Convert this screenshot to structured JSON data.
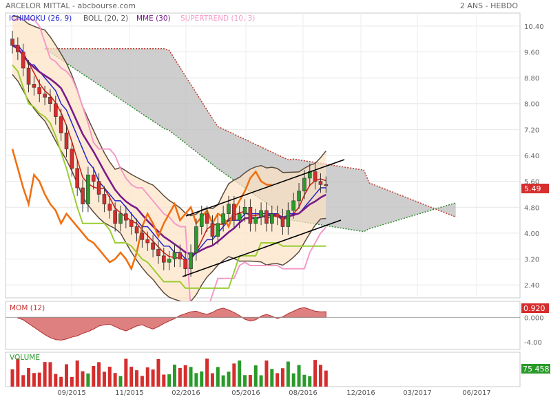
{
  "header": {
    "title": "ARCELOR MITTAL - abcbourse.com",
    "period": "2 ANS - HEBDO"
  },
  "legend": [
    {
      "label": "ICHIMOKU (26, 9)",
      "color": "#2222cc"
    },
    {
      "label": "BOLL (20, 2)",
      "color": "#555555"
    },
    {
      "label": "MME (30)",
      "color": "#7a1a8a"
    },
    {
      "label": "SUPERTREND (10, 3)",
      "color": "#f39ac8"
    }
  ],
  "chart_data": [
    {
      "type": "candlestick",
      "title": "ARCELOR MITTAL - abcbourse.com",
      "subtitle": "2 ANS - HEBDO",
      "x_tick_labels": [
        "09/2015",
        "11/2015",
        "02/2016",
        "05/2016",
        "08/2016",
        "12/2016",
        "03/2017",
        "06/2017"
      ],
      "y_ticks": [
        2.4,
        3.2,
        4.0,
        4.8,
        5.6,
        6.4,
        7.2,
        8.0,
        8.8,
        9.6,
        10.4
      ],
      "y_tick_labels": [
        "2.40",
        "3.20",
        "4.00",
        "4.80",
        "5.60",
        "6.40",
        "7.20",
        "8.00",
        "8.80",
        "9.60",
        "10.40"
      ],
      "ylim": [
        2.0,
        10.8
      ],
      "last_price": "5.49",
      "weekly_close": [
        9.8,
        9.6,
        9.1,
        8.6,
        8.5,
        8.3,
        8.2,
        8.0,
        7.6,
        7.1,
        6.6,
        6.0,
        5.4,
        4.9,
        5.8,
        5.6,
        5.2,
        4.9,
        4.7,
        4.3,
        4.6,
        4.4,
        4.2,
        4.0,
        3.8,
        3.7,
        3.5,
        3.3,
        3.1,
        3.2,
        3.4,
        3.2,
        2.9,
        3.4,
        4.2,
        4.6,
        4.3,
        3.9,
        4.3,
        4.6,
        4.9,
        4.4,
        4.6,
        4.8,
        4.3,
        4.5,
        4.7,
        4.3,
        4.6,
        4.5,
        4.2,
        4.7,
        5.0,
        5.3,
        5.7,
        5.9,
        5.6,
        5.5,
        5.49
      ],
      "overlays": [
        "Ichimoku cloud",
        "Bollinger bands",
        "MME (30)",
        "Supertrend (10, 3)",
        "Trend channel"
      ]
    },
    {
      "type": "area",
      "title": "MOM (12)",
      "y_ticks": [
        0.0,
        -4.0
      ],
      "y_tick_labels": [
        "0.000",
        "-4.00"
      ],
      "last_value": "0.920",
      "values": [
        -0.1,
        -0.4,
        -1.0,
        -1.6,
        -2.2,
        -2.8,
        -3.3,
        -3.6,
        -3.7,
        -3.5,
        -3.2,
        -3.0,
        -2.6,
        -2.3,
        -1.9,
        -1.4,
        -1.2,
        -1.1,
        -1.5,
        -1.9,
        -2.2,
        -1.8,
        -1.4,
        -1.2,
        -1.6,
        -1.9,
        -1.5,
        -1.0,
        -0.6,
        -0.2,
        0.3,
        0.6,
        0.9,
        1.0,
        0.7,
        0.5,
        0.8,
        1.3,
        1.5,
        1.2,
        0.8,
        0.3,
        -0.3,
        -0.6,
        -0.4,
        0.2,
        0.5,
        0.2,
        -0.2,
        0.1,
        0.6,
        1.0,
        1.4,
        1.6,
        1.3,
        1.0,
        0.9,
        0.92
      ]
    },
    {
      "type": "bar",
      "title": "VOLUME",
      "last_value": "75 458"
    }
  ]
}
